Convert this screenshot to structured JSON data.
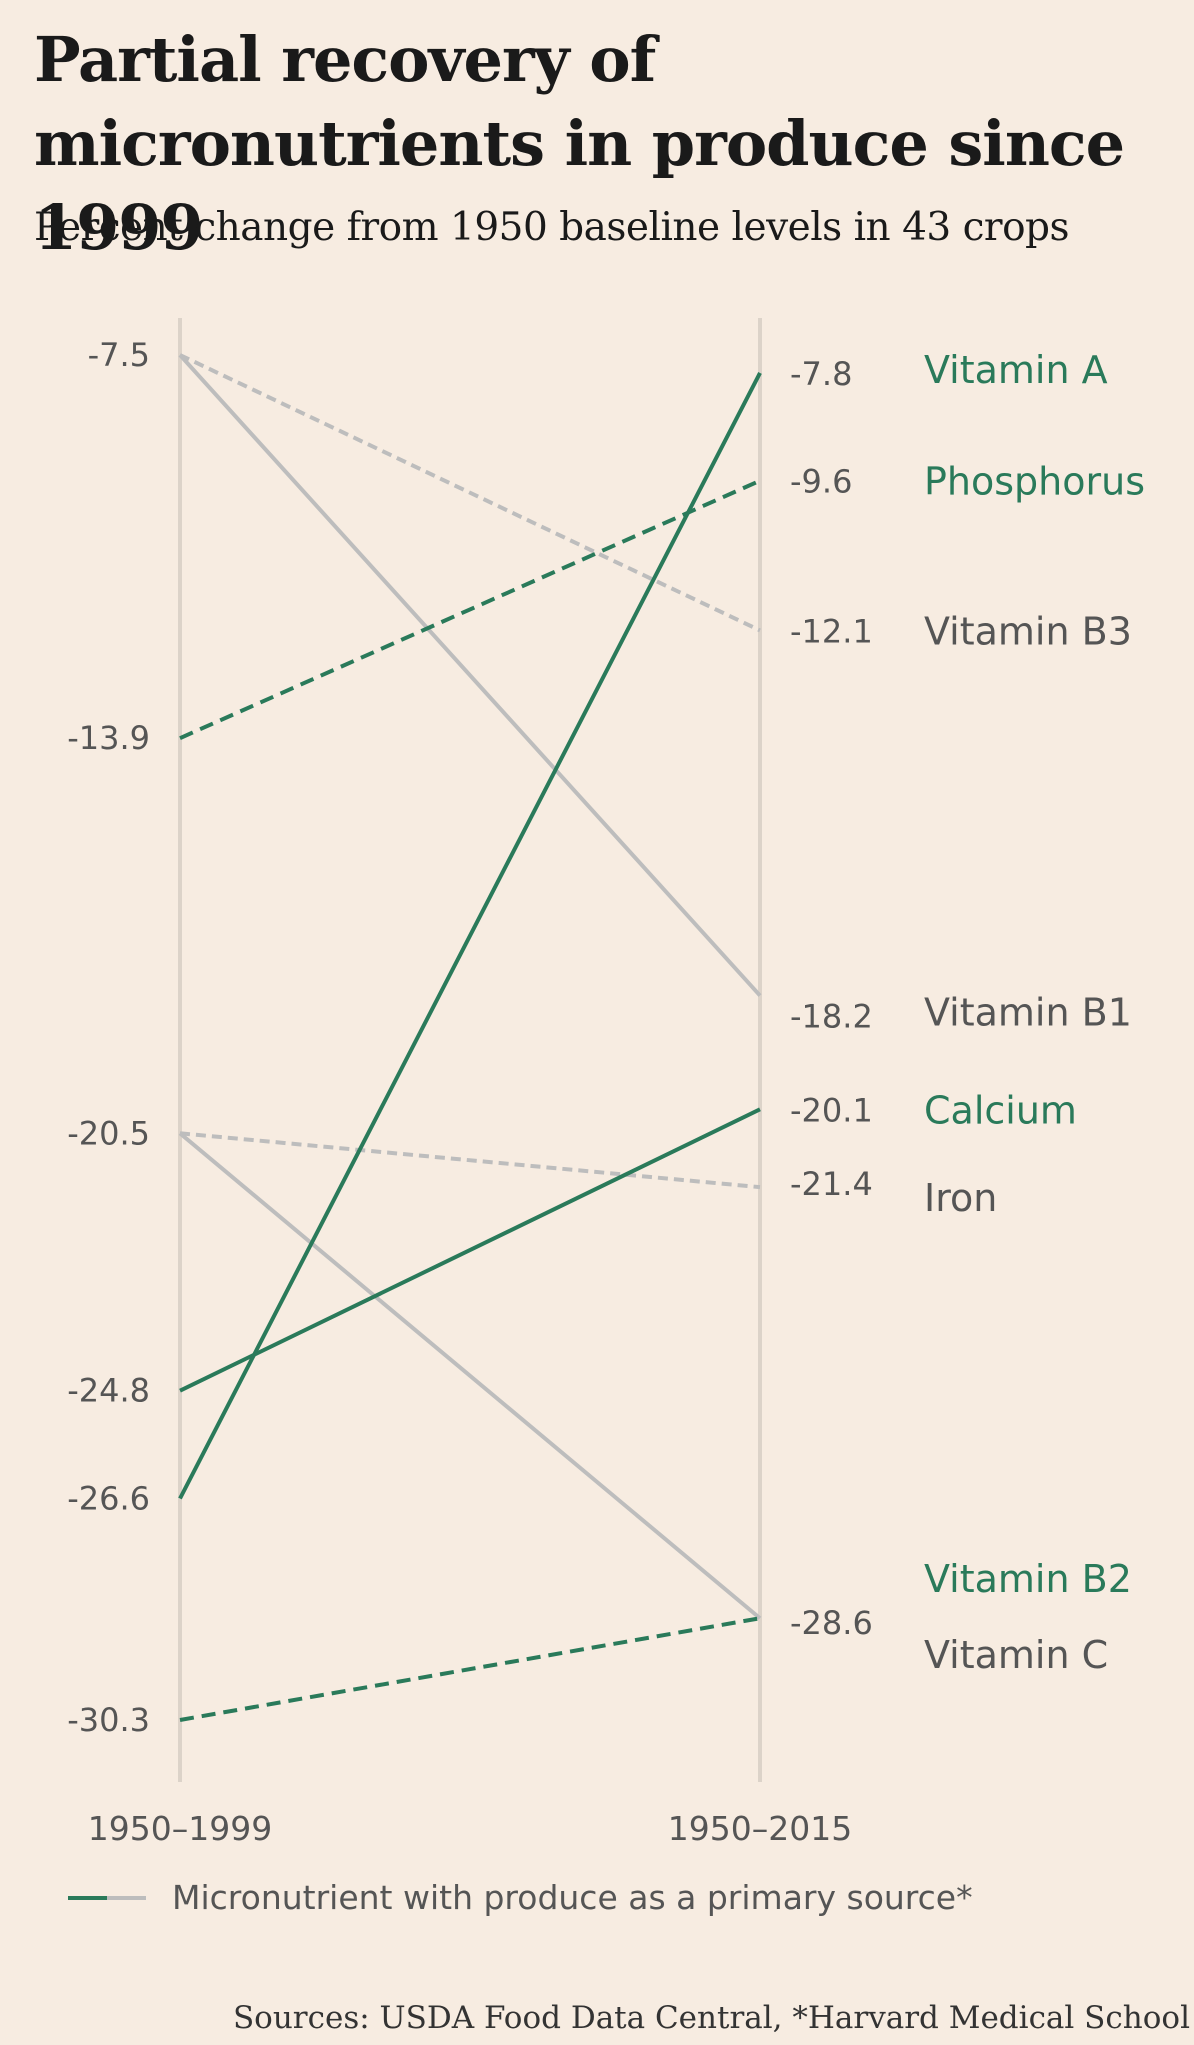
{
  "header": {
    "title": "Partial recovery of micronutrients in produce since 1999",
    "subtitle": "Percent change from 1950 baseline levels in 43 crops"
  },
  "colors": {
    "highlight": "#2a7a5a",
    "muted": "#bdbdbd",
    "axis": "#dcd3c9",
    "tick_text": "#555555",
    "background": "#f7ece1"
  },
  "chart_data": {
    "type": "line",
    "subtype": "slope",
    "x": [
      "1950–1999",
      "1950–2015"
    ],
    "ylim": [
      -32,
      -6.5
    ],
    "grid": false,
    "left_value_labels": [
      "-7.5",
      "-13.9",
      "-20.5",
      "-24.8",
      "-26.6",
      "-30.3"
    ],
    "series": [
      {
        "name": "Vitamin A",
        "values": [
          -26.6,
          -7.8
        ],
        "highlight": true,
        "dashed": false,
        "end_label": "-7.8"
      },
      {
        "name": "Phosphorus",
        "values": [
          -13.9,
          -9.6
        ],
        "highlight": true,
        "dashed": true,
        "end_label": "-9.6"
      },
      {
        "name": "Vitamin B3",
        "values": [
          -7.5,
          -12.1
        ],
        "highlight": false,
        "dashed": true,
        "end_label": "-12.1"
      },
      {
        "name": "Vitamin B1",
        "values": [
          -7.5,
          -18.2
        ],
        "highlight": false,
        "dashed": false,
        "end_label": "-18.2"
      },
      {
        "name": "Calcium",
        "values": [
          -24.8,
          -20.1
        ],
        "highlight": true,
        "dashed": false,
        "end_label": "-20.1"
      },
      {
        "name": "Iron",
        "values": [
          -20.5,
          -21.4
        ],
        "highlight": false,
        "dashed": true,
        "end_label": "-21.4"
      },
      {
        "name": "Vitamin B2",
        "values": [
          -30.3,
          -28.6
        ],
        "highlight": true,
        "dashed": true,
        "end_label": "-28.6"
      },
      {
        "name": "Vitamin C",
        "values": [
          -20.5,
          -28.6
        ],
        "highlight": false,
        "dashed": false,
        "end_label": ""
      }
    ]
  },
  "legend": {
    "label": "Micronutrient with produce as a primary source*"
  },
  "footer": {
    "source": "Sources: USDA Food Data Central, *Harvard Medical School"
  }
}
